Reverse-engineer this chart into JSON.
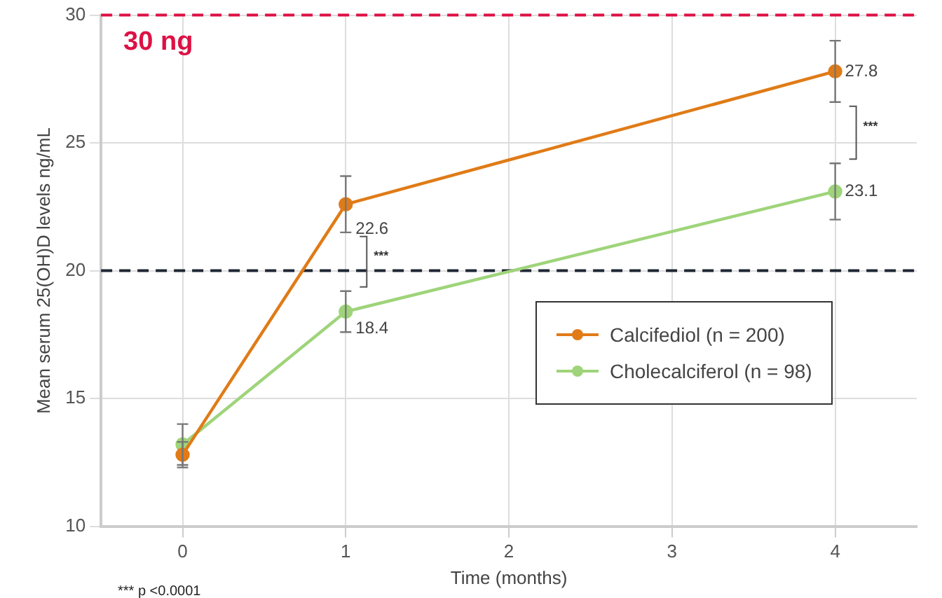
{
  "chart_data": {
    "type": "line",
    "xlabel": "Time (months)",
    "ylabel": "Mean serum 25(OH)D levels ng/mL",
    "x": [
      0,
      1,
      4
    ],
    "series": [
      {
        "name": "Calcifediol (n = 200)",
        "color": "#e07b17",
        "values": [
          12.8,
          22.6,
          27.8
        ],
        "errors": [
          0.5,
          1.1,
          1.2
        ],
        "value_labels": [
          null,
          "22.6",
          "27.8"
        ]
      },
      {
        "name": "Cholecalciferol (n = 98)",
        "color": "#9fd47a",
        "values": [
          13.2,
          18.4,
          23.1
        ],
        "errors": [
          0.8,
          0.8,
          1.1
        ],
        "value_labels": [
          null,
          "18.4",
          "23.1"
        ]
      }
    ],
    "xlim": [
      -0.5,
      4.5
    ],
    "xticks": [
      0,
      1,
      2,
      3,
      4
    ],
    "ylim": [
      10,
      30
    ],
    "yticks": [
      10,
      15,
      20,
      25,
      30
    ],
    "ref_lines": [
      {
        "axis": "y",
        "value": 30,
        "label": "30 ng",
        "color": "#dd1144",
        "line_style": "dashed"
      },
      {
        "axis": "y",
        "value": 20,
        "color": "#1f2733",
        "line_style": "dashed"
      }
    ],
    "annotations": [
      "***",
      "***",
      "*** p <0.0001"
    ],
    "grid": true,
    "legend": "right",
    "marker": "circle",
    "line_style": "solid"
  }
}
